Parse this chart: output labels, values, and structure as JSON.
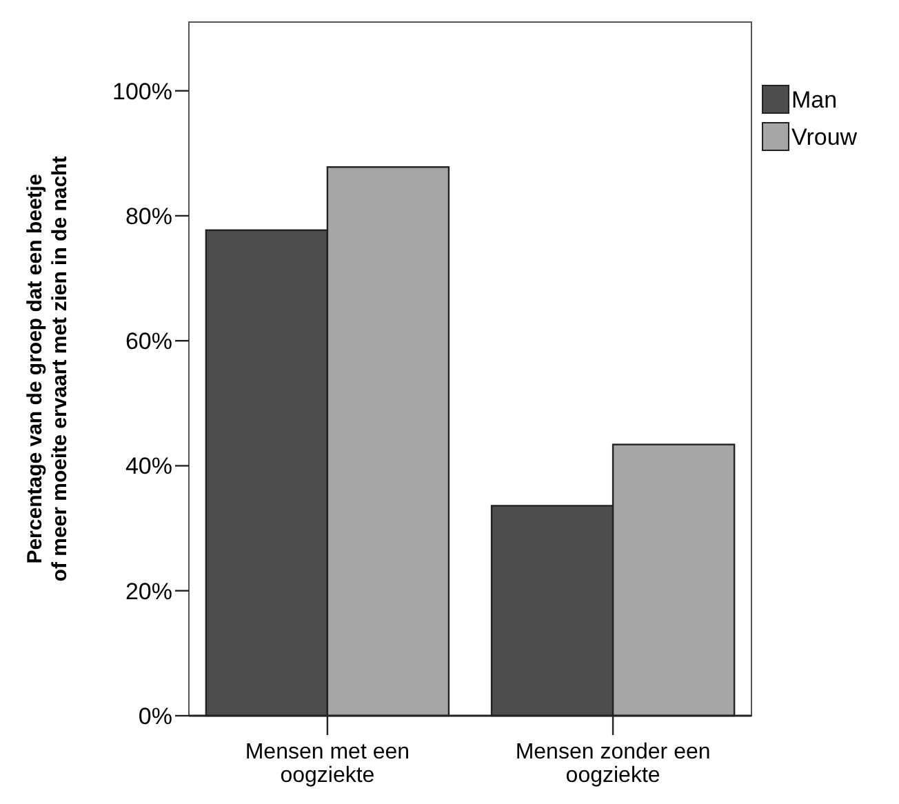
{
  "chart_data": {
    "type": "bar",
    "ylabel": "Percentage van de groep dat een beetje\nof meer moeite ervaart met zien in de nacht",
    "categories": [
      "Mensen met een\noogziekte",
      "Mensen zonder een\noogziekte"
    ],
    "series": [
      {
        "name": "Man",
        "color": "#4d4d4d",
        "values": [
          77.7,
          33.6
        ]
      },
      {
        "name": "Vrouw",
        "color": "#a6a6a6",
        "values": [
          87.8,
          43.4
        ]
      }
    ],
    "ylim": [
      0,
      111
    ],
    "yticks": [
      {
        "value": 0,
        "label": "0%"
      },
      {
        "value": 20,
        "label": "20%"
      },
      {
        "value": 40,
        "label": "40%"
      },
      {
        "value": 60,
        "label": "60%"
      },
      {
        "value": 80,
        "label": "80%"
      },
      {
        "value": 100,
        "label": "100%"
      }
    ],
    "grid": false,
    "legend": "top right"
  }
}
